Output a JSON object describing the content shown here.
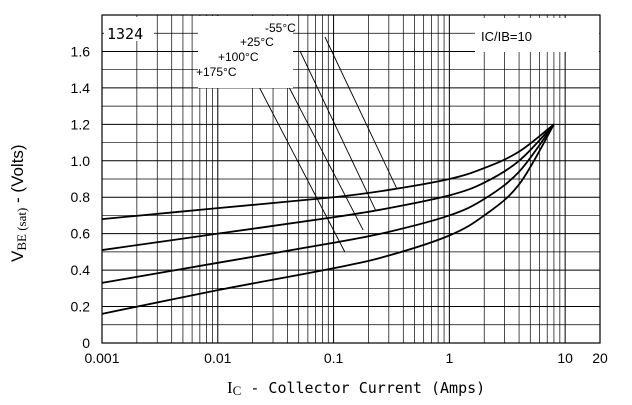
{
  "chart_data": {
    "type": "line",
    "xscale": "log",
    "xlim": [
      0.001,
      20
    ],
    "ylim": [
      0,
      1.8
    ],
    "x_ticks": [
      "0.001",
      "0.01",
      "0.1",
      "1",
      "10",
      "20"
    ],
    "y_ticks": [
      "0",
      "0.2",
      "0.4",
      "0.6",
      "0.8",
      "1.0",
      "1.2",
      "1.4",
      "1.6"
    ],
    "ylabel_main": "V",
    "ylabel_sub": "BE (sat)",
    "ylabel_rest": " - (Volts)",
    "xlabel_main": "I",
    "xlabel_sub": "C",
    "xlabel_rest": " - Collector Current (Amps)",
    "condition_label": "IC/IB=10",
    "part_label": "1324",
    "grid": true,
    "series": [
      {
        "name": "-55°C",
        "x": [
          0.001,
          0.01,
          0.1,
          0.3,
          1,
          2,
          4,
          8
        ],
        "y": [
          0.68,
          0.74,
          0.8,
          0.84,
          0.9,
          0.96,
          1.05,
          1.2
        ]
      },
      {
        "name": "+25°C",
        "x": [
          0.001,
          0.01,
          0.1,
          0.3,
          1,
          2,
          4,
          8
        ],
        "y": [
          0.51,
          0.6,
          0.69,
          0.74,
          0.81,
          0.88,
          1.0,
          1.2
        ]
      },
      {
        "name": "+100°C",
        "x": [
          0.001,
          0.01,
          0.1,
          0.3,
          1,
          2,
          4,
          8
        ],
        "y": [
          0.33,
          0.44,
          0.55,
          0.61,
          0.7,
          0.79,
          0.94,
          1.2
        ]
      },
      {
        "name": "+175°C",
        "x": [
          0.001,
          0.01,
          0.1,
          0.3,
          1,
          2,
          4,
          8
        ],
        "y": [
          0.16,
          0.29,
          0.41,
          0.48,
          0.59,
          0.7,
          0.87,
          1.2
        ]
      }
    ]
  }
}
